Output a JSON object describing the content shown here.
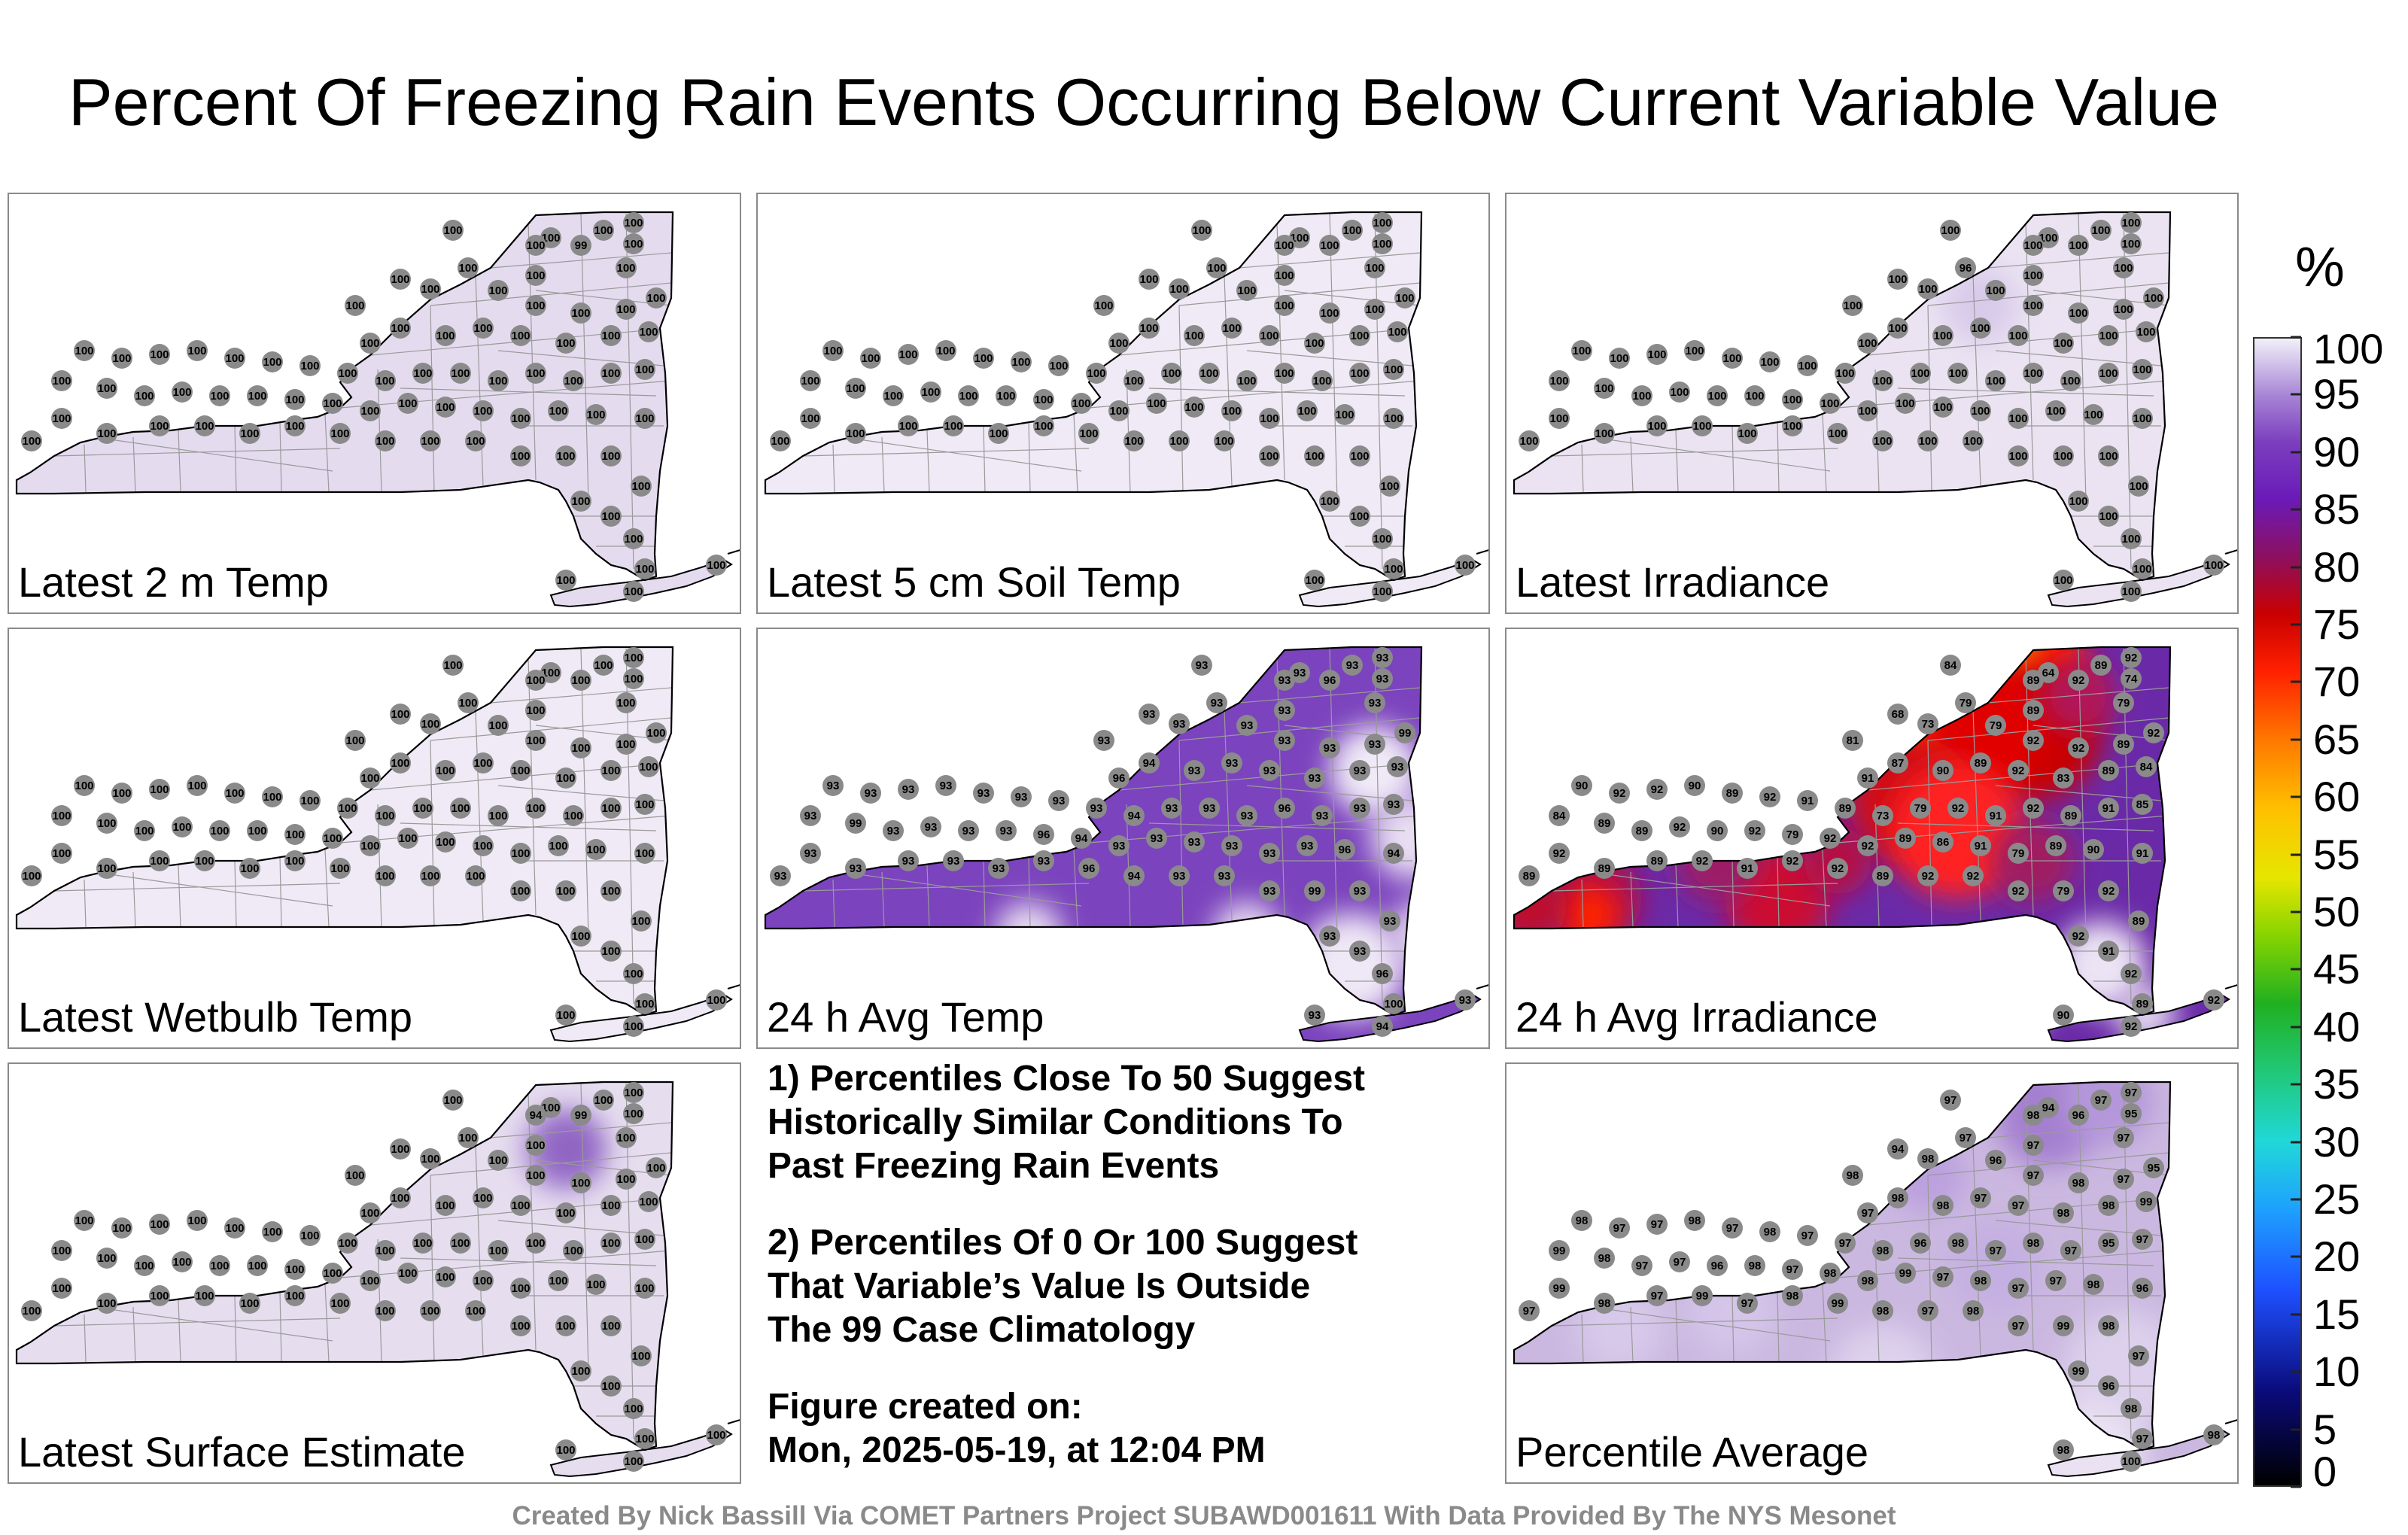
{
  "title": "Percent Of Freezing Rain Events Occurring Below Current Variable Value",
  "panels": [
    {
      "label": "Latest 2 m Temp",
      "fill": "#e5dbef",
      "values": [
        100,
        100,
        100,
        100,
        100,
        100,
        99,
        100,
        100,
        100,
        100,
        100,
        100,
        100,
        100,
        100,
        100,
        100,
        100,
        100,
        100,
        100,
        100,
        100,
        100,
        100,
        100,
        100,
        100,
        100,
        100,
        100,
        100,
        100,
        100,
        100,
        100,
        100,
        100,
        100,
        100,
        100,
        100,
        100,
        100,
        100,
        100,
        100,
        100,
        100,
        100,
        100,
        100,
        100,
        100,
        100,
        100,
        100,
        100,
        100,
        100,
        100,
        100,
        100,
        100,
        100,
        100,
        100,
        100,
        100,
        100,
        100,
        100,
        100,
        100,
        100,
        100,
        100,
        100,
        100
      ]
    },
    {
      "label": "Latest 5 cm Soil Temp",
      "fill": "#efeaf5",
      "values": [
        100,
        100,
        100,
        100,
        100,
        100,
        100,
        100,
        100,
        100,
        100,
        100,
        100,
        100,
        100,
        100,
        100,
        100,
        100,
        100,
        100,
        100,
        100,
        100,
        100,
        100,
        100,
        100,
        100,
        100,
        100,
        100,
        100,
        100,
        100,
        100,
        100,
        100,
        100,
        100,
        100,
        100,
        100,
        100,
        100,
        100,
        100,
        100,
        100,
        100,
        100,
        100,
        100,
        100,
        100,
        100,
        100,
        100,
        100,
        100,
        100,
        100,
        100,
        100,
        100,
        100,
        100,
        100,
        100,
        100,
        100,
        100,
        100,
        100,
        100,
        100,
        100,
        100,
        100,
        100
      ]
    },
    {
      "label": "Latest Irradiance",
      "fill": "#ebe3f2",
      "values": [
        100,
        100,
        100,
        100,
        100,
        100,
        100,
        96,
        100,
        100,
        100,
        100,
        100,
        100,
        100,
        100,
        100,
        100,
        100,
        100,
        100,
        100,
        100,
        100,
        100,
        100,
        100,
        100,
        100,
        100,
        100,
        100,
        100,
        100,
        100,
        100,
        100,
        100,
        100,
        100,
        100,
        100,
        100,
        100,
        100,
        100,
        100,
        100,
        100,
        100,
        100,
        100,
        100,
        100,
        100,
        100,
        100,
        100,
        100,
        100,
        100,
        100,
        100,
        100,
        100,
        100,
        100,
        100,
        100,
        100,
        100,
        100,
        100,
        100,
        100,
        100,
        100,
        100,
        100,
        100
      ]
    },
    {
      "label": "Latest Wetbulb Temp",
      "fill": "#efeaf5",
      "values": [
        100,
        100,
        100,
        100,
        100,
        100,
        100,
        100,
        100,
        100,
        100,
        100,
        100,
        100,
        100,
        100,
        100,
        100,
        100,
        100,
        100,
        100,
        100,
        100,
        100,
        100,
        100,
        100,
        100,
        100,
        100,
        100,
        100,
        100,
        100,
        100,
        100,
        100,
        100,
        100,
        100,
        100,
        100,
        100,
        100,
        100,
        100,
        100,
        100,
        100,
        100,
        100,
        100,
        100,
        100,
        100,
        100,
        100,
        100,
        100,
        100,
        100,
        100,
        100,
        100,
        100,
        100,
        100,
        100,
        100,
        100,
        100,
        100,
        100,
        100,
        100,
        100,
        100,
        100,
        100
      ]
    },
    {
      "label": "24 h Avg Temp",
      "fill": "#7b43bd",
      "values": [
        93,
        93,
        93,
        93,
        93,
        93,
        96,
        93,
        93,
        93,
        93,
        93,
        93,
        93,
        93,
        93,
        93,
        99,
        96,
        94,
        93,
        93,
        93,
        93,
        93,
        93,
        93,
        93,
        93,
        93,
        93,
        93,
        93,
        93,
        94,
        93,
        93,
        93,
        96,
        93,
        93,
        93,
        93,
        99,
        93,
        93,
        93,
        93,
        96,
        94,
        93,
        93,
        93,
        93,
        93,
        93,
        96,
        94,
        93,
        93,
        93,
        93,
        93,
        93,
        93,
        96,
        94,
        93,
        93,
        93,
        99,
        93,
        93,
        93,
        93,
        96,
        100,
        93,
        94,
        93
      ]
    },
    {
      "label": "24 h Avg Irradiance",
      "fill": "#6a2aa8",
      "values": [
        84,
        64,
        89,
        92,
        74,
        89,
        92,
        79,
        89,
        79,
        81,
        68,
        73,
        79,
        92,
        92,
        89,
        92,
        91,
        87,
        90,
        89,
        92,
        83,
        89,
        84,
        90,
        92,
        92,
        90,
        89,
        92,
        91,
        89,
        73,
        79,
        92,
        91,
        92,
        89,
        91,
        85,
        84,
        89,
        89,
        92,
        90,
        92,
        79,
        92,
        92,
        89,
        86,
        91,
        79,
        89,
        90,
        91,
        89,
        92,
        89,
        89,
        92,
        91,
        92,
        92,
        89,
        92,
        92,
        92,
        79,
        92,
        89,
        92,
        91,
        92,
        89,
        90,
        92,
        92
      ]
    },
    {
      "label": "Latest Surface Estimate",
      "fill": "#e6ddef",
      "values": [
        100,
        100,
        100,
        100,
        100,
        94,
        99,
        100,
        100,
        100,
        100,
        100,
        100,
        100,
        100,
        100,
        100,
        100,
        100,
        100,
        100,
        100,
        100,
        100,
        100,
        100,
        100,
        100,
        100,
        100,
        100,
        100,
        100,
        100,
        100,
        100,
        100,
        100,
        100,
        100,
        100,
        100,
        100,
        100,
        100,
        100,
        100,
        100,
        100,
        100,
        100,
        100,
        100,
        100,
        100,
        100,
        100,
        100,
        100,
        100,
        100,
        100,
        100,
        100,
        100,
        100,
        100,
        100,
        100,
        100,
        100,
        100,
        100,
        100,
        100,
        100,
        100,
        100,
        100,
        100
      ]
    },
    {
      "label": "Percentile Average",
      "fill": "#cbb8e0",
      "values": [
        97,
        94,
        97,
        97,
        95,
        98,
        96,
        97,
        97,
        97,
        98,
        94,
        98,
        96,
        97,
        98,
        97,
        95,
        97,
        98,
        98,
        97,
        97,
        98,
        98,
        99,
        98,
        97,
        97,
        98,
        97,
        98,
        97,
        97,
        98,
        96,
        98,
        97,
        98,
        97,
        95,
        97,
        99,
        98,
        97,
        97,
        96,
        98,
        97,
        98,
        98,
        99,
        97,
        98,
        97,
        97,
        98,
        96,
        97,
        99,
        98,
        97,
        99,
        97,
        98,
        99,
        98,
        97,
        98,
        97,
        99,
        98,
        97,
        99,
        96,
        98,
        97,
        98,
        100,
        98
      ]
    }
  ],
  "notes": {
    "note1": [
      "1) Percentiles Close To 50 Suggest",
      "Historically Similar Conditions To",
      "Past Freezing Rain Events"
    ],
    "note2": [
      "2) Percentiles Of 0 Or 100 Suggest",
      "That Variable’s Value Is Outside",
      "The 99 Case Climatology"
    ],
    "created_label": "Figure created on:",
    "created_value": "Mon, 2025-05-19, at 12:04 PM"
  },
  "colorbar": {
    "unit": "%",
    "ticks": [
      "0",
      "5",
      "10",
      "15",
      "20",
      "25",
      "30",
      "35",
      "40",
      "45",
      "50",
      "55",
      "60",
      "65",
      "70",
      "75",
      "80",
      "85",
      "90",
      "95",
      "100"
    ]
  },
  "credit": "Created By Nick Bassill Via COMET Partners Project SUBAWD001611 With Data Provided By The NYS Mesonet",
  "colors": {
    "station_marker": "#8a8a8a",
    "state_outline": "#000000",
    "county_lines": "#9a9a9a"
  }
}
